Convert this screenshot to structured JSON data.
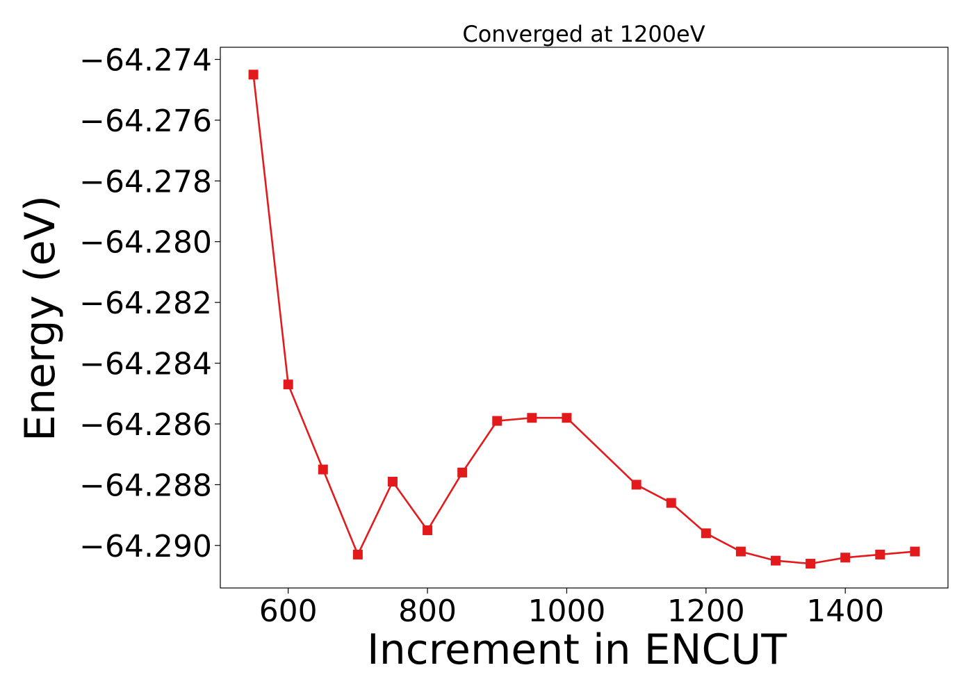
{
  "chart_data": {
    "type": "line",
    "title": "Converged at 1200eV",
    "xlabel": "Increment in ENCUT",
    "ylabel": "Energy (eV)",
    "xlim": [
      502.5,
      1547.5
    ],
    "ylim": [
      -64.2914,
      -64.2736
    ],
    "x_ticks": [
      600,
      800,
      1000,
      1200,
      1400
    ],
    "x_tick_labels": [
      "600",
      "800",
      "1000",
      "1200",
      "1400"
    ],
    "y_ticks": [
      -64.274,
      -64.276,
      -64.278,
      -64.28,
      -64.282,
      -64.284,
      -64.286,
      -64.288,
      -64.29
    ],
    "y_tick_labels": [
      "−64.274",
      "−64.276",
      "−64.278",
      "−64.280",
      "−64.282",
      "−64.284",
      "−64.286",
      "−64.288",
      "−64.290"
    ],
    "grid": false,
    "series": [
      {
        "color": "#e31a1c",
        "marker": "square",
        "x": [
          550,
          600,
          650,
          700,
          750,
          800,
          850,
          900,
          950,
          1000,
          1100,
          1150,
          1200,
          1250,
          1300,
          1350,
          1400,
          1450,
          1500
        ],
        "y": [
          -64.2745,
          -64.2847,
          -64.2875,
          -64.2903,
          -64.2879,
          -64.2895,
          -64.2876,
          -64.2859,
          -64.2858,
          -64.2858,
          -64.288,
          -64.2886,
          -64.2896,
          -64.2902,
          -64.2905,
          -64.2906,
          -64.2904,
          -64.2903,
          -64.2902
        ]
      }
    ]
  }
}
